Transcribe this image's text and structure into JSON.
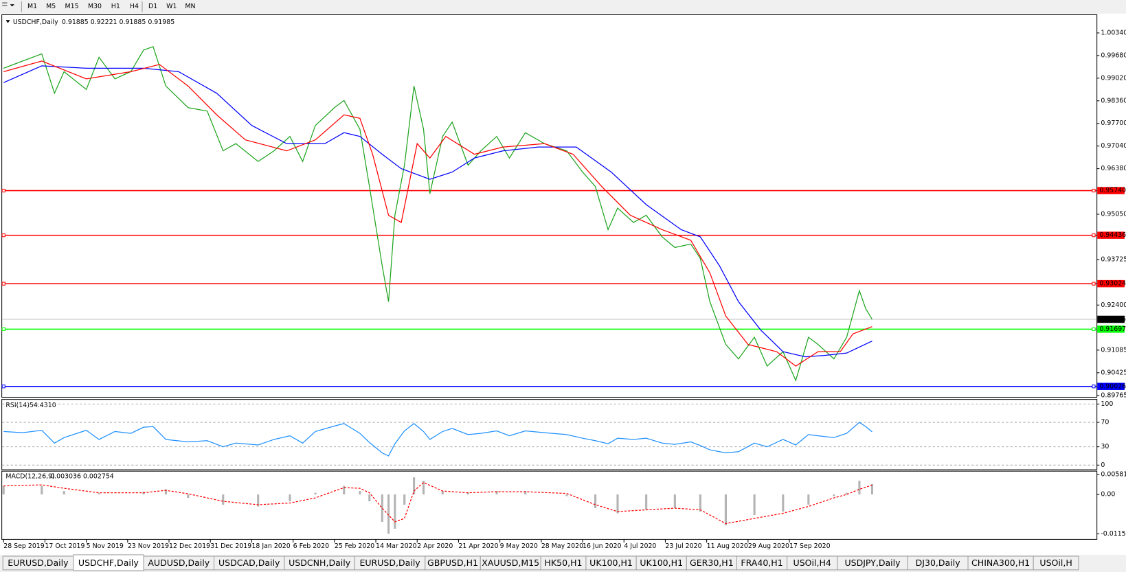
{
  "toolbar": {
    "timeframes": [
      "M1",
      "M5",
      "M15",
      "M30",
      "H1",
      "H4",
      "D1",
      "W1",
      "MN"
    ]
  },
  "tabs": {
    "items": [
      "EURUSD,Daily",
      "USDCHF,Daily",
      "AUDUSD,Daily",
      "USDCAD,Daily",
      "USDCNH,Daily",
      "EURUSD,Daily",
      "GBPUSD,H1",
      "XAUUSD,M15",
      "HK50,H1",
      "UK100,H1",
      "UK100,H1",
      "GER30,H1",
      "FRA40,H1",
      "USOil,H4",
      "USDJPY,Daily",
      "DJ30,Daily",
      "CHINA300,H1",
      "USOil,H"
    ],
    "active": 1
  },
  "chart_data": [
    {
      "type": "line",
      "title": "USDCHF,Daily",
      "readout": "0.91885 0.92221 0.91885 0.91985",
      "xlim": [
        0,
        344
      ],
      "xticks": [
        {
          "value": 0,
          "label": "28 Sep 2019"
        },
        {
          "value": 13,
          "label": "17 Oct 2019"
        },
        {
          "value": 26,
          "label": "5 Nov 2019"
        },
        {
          "value": 39,
          "label": "23 Nov 2019"
        },
        {
          "value": 52,
          "label": "12 Dec 2019"
        },
        {
          "value": 65,
          "label": "31 Dec 2019"
        },
        {
          "value": 78,
          "label": "18 Jan 2020"
        },
        {
          "value": 91,
          "label": "6 Feb 2020"
        },
        {
          "value": 104,
          "label": "25 Feb 2020"
        },
        {
          "value": 117,
          "label": "14 Mar 2020"
        },
        {
          "value": 130,
          "label": "2 Apr 2020"
        },
        {
          "value": 143,
          "label": "21 Apr 2020"
        },
        {
          "value": 156,
          "label": "9 May 2020"
        },
        {
          "value": 169,
          "label": "28 May 2020"
        },
        {
          "value": 182,
          "label": "16 Jun 2020"
        },
        {
          "value": 195,
          "label": "4 Jul 2020"
        },
        {
          "value": 208,
          "label": "23 Jul 2020"
        },
        {
          "value": 221,
          "label": "11 Aug 2020"
        },
        {
          "value": 234,
          "label": "29 Aug 2020"
        },
        {
          "value": 247,
          "label": "17 Sep 2020"
        }
      ],
      "ylim": [
        0.897,
        1.0084
      ],
      "yticks": [
        {
          "value": 1.0034,
          "label": "1.00340"
        },
        {
          "value": 0.9968,
          "label": "0.99680"
        },
        {
          "value": 0.9902,
          "label": "0.99020"
        },
        {
          "value": 0.9836,
          "label": "0.98360"
        },
        {
          "value": 0.977,
          "label": "0.97700"
        },
        {
          "value": 0.9704,
          "label": "0.97040"
        },
        {
          "value": 0.9638,
          "label": "0.96380"
        },
        {
          "value": 0.9505,
          "label": "0.95050"
        },
        0.93725,
        {
          "value": 0.924,
          "label": "0.92400"
        },
        0.91085,
        0.90425,
        0.89765
      ],
      "levels": [
        {
          "value": 0.9574,
          "label": "0.95740",
          "color": "#ff0000"
        },
        {
          "value": 0.94436,
          "color": "#ff0000"
        },
        {
          "value": 0.93024,
          "color": "#ff0000"
        },
        {
          "value": 0.91697,
          "color": "#00ff00"
        },
        {
          "value": 0.90026,
          "color": "#0000ff"
        }
      ],
      "last_price": 0.91985,
      "series": [
        {
          "color": "#1fa51f",
          "x": [
            0,
            6,
            12,
            16,
            19,
            26,
            30,
            35,
            40,
            44,
            47,
            51,
            58,
            64,
            69,
            73,
            80,
            85,
            90,
            94,
            98,
            104,
            107,
            112,
            115,
            119,
            121,
            123,
            126,
            129,
            132,
            134,
            138,
            141,
            146,
            150,
            155,
            159,
            164,
            170,
            177,
            182,
            186,
            190,
            193,
            198,
            202,
            207,
            211,
            216,
            219,
            222,
            227,
            231,
            236,
            240,
            245,
            249,
            253,
            256,
            261,
            265,
            269,
            271,
            273
          ],
          "values": [
            0.9931,
            0.9952,
            0.9973,
            0.9858,
            0.9921,
            0.9869,
            0.9963,
            0.99,
            0.9921,
            0.9984,
            0.9994,
            0.9879,
            0.9816,
            0.9806,
            0.969,
            0.9711,
            0.9659,
            0.969,
            0.9732,
            0.9659,
            0.9764,
            0.9816,
            0.9837,
            0.9753,
            0.9586,
            0.9355,
            0.925,
            0.9502,
            0.9648,
            0.9879,
            0.9753,
            0.9565,
            0.9732,
            0.9774,
            0.9648,
            0.969,
            0.9732,
            0.9669,
            0.9743,
            0.9711,
            0.969,
            0.9628,
            0.9586,
            0.946,
            0.9523,
            0.9481,
            0.9502,
            0.9439,
            0.9408,
            0.9418,
            0.9376,
            0.925,
            0.9125,
            0.9083,
            0.9146,
            0.9062,
            0.9104,
            0.902,
            0.9146,
            0.9125,
            0.9083,
            0.9146,
            0.9282,
            0.9229,
            0.91985
          ]
        },
        {
          "color": "#0000ff",
          "x": [
            0,
            12,
            26,
            44,
            55,
            67,
            78,
            89,
            101,
            107,
            112,
            119,
            125,
            134,
            141,
            148,
            157,
            168,
            180,
            191,
            202,
            213,
            219,
            225,
            231,
            238,
            245,
            252,
            258,
            265,
            273
          ],
          "values": [
            0.9889,
            0.9938,
            0.9931,
            0.9931,
            0.9921,
            0.9858,
            0.9764,
            0.9711,
            0.9711,
            0.9743,
            0.9732,
            0.968,
            0.9638,
            0.9607,
            0.9628,
            0.9669,
            0.969,
            0.9701,
            0.9701,
            0.9628,
            0.9533,
            0.946,
            0.9439,
            0.9355,
            0.925,
            0.9167,
            0.9104,
            0.9089,
            0.9093,
            0.91,
            0.9135
          ]
        },
        {
          "color": "#ff0000",
          "x": [
            0,
            12,
            26,
            40,
            49,
            58,
            67,
            76,
            89,
            98,
            107,
            112,
            116,
            121,
            125,
            130,
            134,
            139,
            148,
            157,
            170,
            179,
            188,
            197,
            207,
            216,
            222,
            227,
            234,
            243,
            249,
            256,
            263,
            267,
            273
          ],
          "values": [
            0.9921,
            0.9952,
            0.99,
            0.9921,
            0.9942,
            0.9879,
            0.9795,
            0.9722,
            0.969,
            0.9722,
            0.9795,
            0.9785,
            0.968,
            0.9502,
            0.9481,
            0.9711,
            0.9669,
            0.9732,
            0.968,
            0.9701,
            0.9711,
            0.968,
            0.9586,
            0.9502,
            0.946,
            0.9429,
            0.9334,
            0.9208,
            0.9125,
            0.9104,
            0.9062,
            0.9104,
            0.9104,
            0.9156,
            0.9177
          ]
        }
      ]
    },
    {
      "type": "line",
      "title": "RSI(14)",
      "readout": "54.4310",
      "xlim": [
        0,
        344
      ],
      "ylim": [
        -7,
        107
      ],
      "yticks": [
        0,
        30,
        70,
        100
      ],
      "grid": "dashed",
      "series": [
        {
          "color": "#1e90ff",
          "x": [
            0,
            6,
            12,
            16,
            19,
            26,
            30,
            35,
            40,
            44,
            47,
            51,
            58,
            64,
            69,
            73,
            80,
            85,
            90,
            94,
            98,
            104,
            107,
            112,
            115,
            119,
            121,
            123,
            126,
            129,
            132,
            134,
            138,
            141,
            146,
            150,
            155,
            159,
            164,
            170,
            177,
            182,
            186,
            190,
            193,
            198,
            202,
            207,
            211,
            216,
            219,
            222,
            227,
            231,
            236,
            240,
            245,
            249,
            253,
            256,
            261,
            265,
            269,
            271,
            273
          ],
          "values": [
            55,
            53,
            57,
            36,
            45,
            57,
            42,
            55,
            52,
            62,
            63,
            42,
            38,
            40,
            30,
            36,
            33,
            42,
            48,
            36,
            55,
            64,
            68,
            52,
            37,
            20,
            15,
            35,
            56,
            68,
            55,
            42,
            55,
            60,
            50,
            52,
            56,
            48,
            56,
            53,
            50,
            44,
            40,
            35,
            44,
            42,
            44,
            36,
            34,
            38,
            32,
            25,
            20,
            22,
            36,
            30,
            42,
            33,
            50,
            48,
            45,
            52,
            70,
            63,
            54.431
          ]
        }
      ]
    },
    {
      "type": "combo",
      "title": "MACD(12,26,9)",
      "readout": "0.003036 0.002754",
      "xlim": [
        0,
        344
      ],
      "ylim": [
        -0.0128,
        0.0067
      ],
      "yticks": [
        0.005818,
        {
          "value": 0,
          "label": "0.00"
        },
        -0.011514
      ],
      "series": [
        {
          "kind": "bar",
          "color": "#b4b4b4",
          "x": [
            0,
            12,
            19,
            30,
            44,
            51,
            58,
            69,
            80,
            90,
            98,
            107,
            112,
            115,
            119,
            121,
            123,
            126,
            129,
            132,
            138,
            146,
            155,
            164,
            177,
            186,
            193,
            202,
            211,
            219,
            227,
            236,
            245,
            253,
            261,
            265,
            269,
            273
          ],
          "values": [
            0.0025,
            0.0025,
            0.001,
            0.0004,
            0.0008,
            0.0015,
            -0.001,
            -0.003,
            -0.0035,
            -0.002,
            0.0005,
            0.0025,
            0.001,
            -0.002,
            -0.008,
            -0.0115,
            -0.01,
            -0.003,
            0.005,
            0.004,
            0.001,
            0.0005,
            0.001,
            0.001,
            -0.0005,
            -0.004,
            -0.0055,
            -0.0045,
            -0.004,
            -0.005,
            -0.009,
            -0.006,
            -0.005,
            -0.003,
            -0.0005,
            0.0005,
            0.004,
            0.003036
          ]
        },
        {
          "kind": "line",
          "dashed": true,
          "color": "#ff0000",
          "x": [
            0,
            12,
            19,
            30,
            44,
            51,
            58,
            69,
            80,
            90,
            98,
            107,
            112,
            115,
            119,
            123,
            126,
            129,
            132,
            138,
            146,
            155,
            164,
            177,
            186,
            193,
            202,
            211,
            219,
            227,
            236,
            245,
            253,
            261,
            265,
            269,
            273
          ],
          "values": [
            0.0025,
            0.0028,
            0.0018,
            0.0005,
            0.0005,
            0.0012,
            0.0002,
            -0.002,
            -0.003,
            -0.0025,
            -0.001,
            0.002,
            0.0018,
            0.0005,
            -0.004,
            -0.008,
            -0.007,
            0.001,
            0.0035,
            0.001,
            0.0005,
            0.0008,
            0.0008,
            0.0003,
            -0.003,
            -0.005,
            -0.0045,
            -0.004,
            -0.0045,
            -0.0085,
            -0.007,
            -0.0055,
            -0.0035,
            -0.001,
            0,
            0.0015,
            0.002754
          ]
        }
      ]
    }
  ]
}
